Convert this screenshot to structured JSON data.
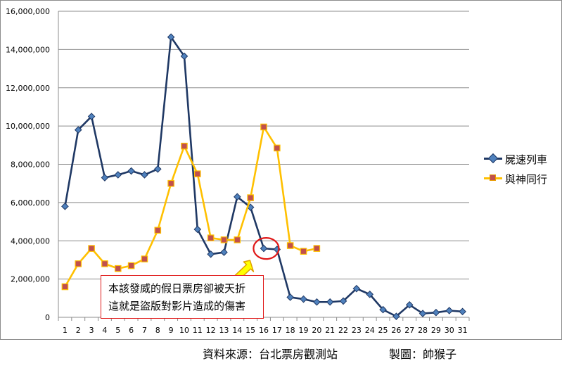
{
  "chart_data": {
    "type": "line",
    "categories": [
      "1",
      "2",
      "3",
      "4",
      "5",
      "6",
      "7",
      "8",
      "9",
      "10",
      "11",
      "12",
      "13",
      "14",
      "15",
      "16",
      "17",
      "18",
      "19",
      "20",
      "21",
      "22",
      "23",
      "24",
      "25",
      "26",
      "27",
      "28",
      "29",
      "30",
      "31"
    ],
    "ylim": [
      0,
      16000000
    ],
    "yticks": [
      "0",
      "2,000,000",
      "4,000,000",
      "6,000,000",
      "8,000,000",
      "10,000,000",
      "12,000,000",
      "14,000,000",
      "16,000,000"
    ],
    "grid": "horizontal",
    "legend_position": "right",
    "series": [
      {
        "name": "屍速列車",
        "color": "#1f3864",
        "marker": "diamond",
        "marker_color": "#4f81bd",
        "values": [
          5800000,
          9800000,
          10500000,
          7300000,
          7450000,
          7650000,
          7450000,
          7750000,
          14650000,
          13650000,
          4600000,
          3300000,
          3400000,
          6300000,
          5750000,
          3600000,
          3550000,
          1050000,
          950000,
          800000,
          800000,
          850000,
          1500000,
          1200000,
          400000,
          50000,
          650000,
          200000,
          250000,
          350000,
          300000
        ]
      },
      {
        "name": "與神同行",
        "color": "#ffc000",
        "marker": "square",
        "marker_color": "#c0504d",
        "values": [
          1600000,
          2800000,
          3600000,
          2800000,
          2550000,
          2700000,
          3050000,
          4550000,
          7000000,
          8950000,
          7500000,
          4150000,
          4050000,
          4050000,
          6250000,
          9950000,
          8850000,
          3750000,
          3450000,
          3600000,
          null,
          null,
          null,
          null,
          null,
          null,
          null,
          null,
          null,
          null,
          null
        ]
      }
    ],
    "annotation": {
      "lines": [
        "本該發威的假日票房卻被天折",
        "這就是盜版對影片造成的傷害"
      ],
      "highlight_day": "16"
    }
  },
  "footer": {
    "source": "資料來源：台北票房觀測站",
    "credit": "製圖：帥猴子"
  }
}
